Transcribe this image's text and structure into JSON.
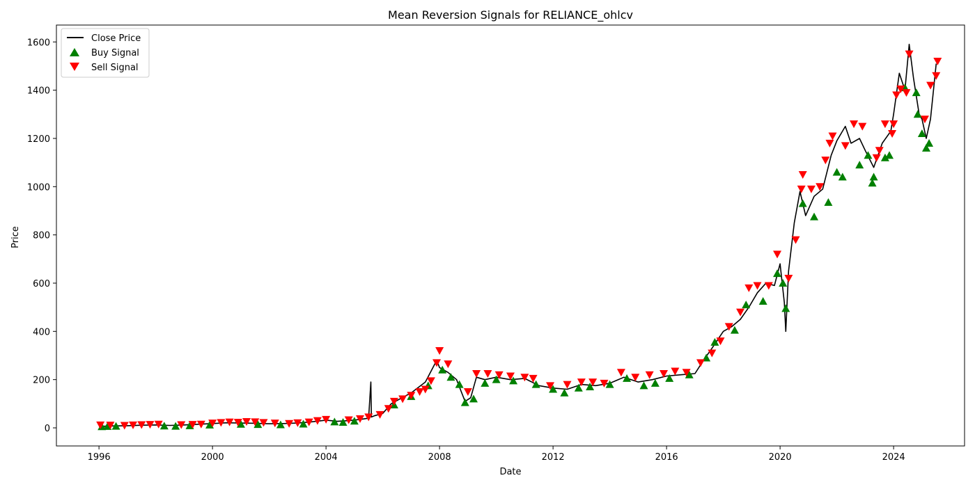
{
  "chart_data": {
    "type": "line",
    "title": "Mean Reversion Signals for RELIANCE_ohlcv",
    "xlabel": "Date",
    "ylabel": "Price",
    "xlim": [
      1994.5,
      2026.5
    ],
    "ylim": [
      -75,
      1670
    ],
    "x_ticks": [
      1996,
      2000,
      2004,
      2008,
      2012,
      2016,
      2020,
      2024
    ],
    "y_ticks": [
      0,
      200,
      400,
      600,
      800,
      1000,
      1200,
      1400,
      1600
    ],
    "grid": false,
    "legend_position": "upper-left",
    "colors": {
      "close": "#000000",
      "buy": "#008000",
      "sell": "#ff0000"
    },
    "series": [
      {
        "name": "Close Price",
        "kind": "line",
        "x": [
          1996.0,
          1996.5,
          1997.0,
          1997.5,
          1998.0,
          1998.5,
          1999.0,
          1999.5,
          2000.0,
          2000.5,
          2001.0,
          2001.5,
          2002.0,
          2002.5,
          2003.0,
          2003.5,
          2004.0,
          2004.4,
          2004.8,
          2005.2,
          2005.5,
          2005.58,
          2005.6,
          2005.7,
          2006.0,
          2006.3,
          2006.6,
          2007.0,
          2007.5,
          2007.9,
          2008.0,
          2008.3,
          2008.6,
          2008.8,
          2008.9,
          2009.1,
          2009.3,
          2009.6,
          2010.0,
          2010.5,
          2011.0,
          2011.5,
          2012.0,
          2012.5,
          2013.0,
          2013.5,
          2014.0,
          2014.5,
          2015.0,
          2015.5,
          2016.0,
          2016.5,
          2017.0,
          2017.3,
          2017.6,
          2018.0,
          2018.3,
          2018.6,
          2018.9,
          2019.2,
          2019.5,
          2019.8,
          2020.0,
          2020.15,
          2020.2,
          2020.3,
          2020.5,
          2020.7,
          2020.9,
          2021.2,
          2021.5,
          2021.8,
          2022.0,
          2022.3,
          2022.5,
          2022.8,
          2023.0,
          2023.3,
          2023.6,
          2023.9,
          2024.0,
          2024.2,
          2024.4,
          2024.55,
          2024.7,
          2024.9,
          2025.0,
          2025.15,
          2025.3,
          2025.5
        ],
        "values": [
          6,
          8,
          9,
          11,
          12,
          10,
          12,
          15,
          18,
          21,
          20,
          19,
          17,
          18,
          20,
          25,
          32,
          27,
          30,
          35,
          40,
          190,
          45,
          50,
          60,
          100,
          120,
          145,
          190,
          280,
          250,
          230,
          200,
          140,
          110,
          125,
          210,
          200,
          210,
          200,
          205,
          175,
          165,
          160,
          180,
          175,
          185,
          210,
          190,
          200,
          215,
          220,
          225,
          280,
          330,
          400,
          420,
          450,
          500,
          560,
          600,
          590,
          680,
          520,
          400,
          650,
          850,
          980,
          880,
          960,
          990,
          1130,
          1190,
          1250,
          1180,
          1200,
          1150,
          1080,
          1180,
          1230,
          1300,
          1470,
          1400,
          1590,
          1450,
          1300,
          1280,
          1200,
          1280,
          1510
        ]
      },
      {
        "name": "Buy Signal",
        "kind": "scatter",
        "marker": "triangle-up",
        "x": [
          1996.1,
          1996.3,
          1996.6,
          1998.3,
          1998.7,
          1999.2,
          1999.9,
          2001.0,
          2001.6,
          2002.4,
          2003.2,
          2004.3,
          2004.6,
          2005.0,
          2006.4,
          2007.0,
          2007.6,
          2008.1,
          2008.4,
          2008.7,
          2008.9,
          2009.2,
          2009.6,
          2010.0,
          2010.6,
          2011.4,
          2012.0,
          2012.4,
          2012.9,
          2013.3,
          2014.0,
          2014.6,
          2015.2,
          2015.6,
          2016.1,
          2016.8,
          2017.4,
          2017.7,
          2018.4,
          2018.8,
          2019.4,
          2019.9,
          2020.1,
          2020.2,
          2020.8,
          2021.2,
          2021.7,
          2022.0,
          2022.2,
          2022.8,
          2023.1,
          2023.25,
          2023.3,
          2023.7,
          2023.85,
          2024.4,
          2024.8,
          2024.85,
          2025.0,
          2025.15,
          2025.25
        ],
        "values": [
          5,
          6,
          7,
          8,
          7,
          9,
          12,
          15,
          14,
          13,
          16,
          25,
          23,
          28,
          95,
          130,
          175,
          240,
          210,
          180,
          105,
          120,
          185,
          200,
          195,
          180,
          160,
          145,
          165,
          170,
          180,
          205,
          175,
          185,
          205,
          220,
          290,
          355,
          405,
          510,
          525,
          640,
          600,
          495,
          930,
          875,
          935,
          1060,
          1040,
          1090,
          1130,
          1015,
          1040,
          1120,
          1130,
          1410,
          1390,
          1300,
          1220,
          1160,
          1180
        ]
      },
      {
        "name": "Sell Signal",
        "kind": "scatter",
        "marker": "triangle-down",
        "x": [
          1996.05,
          1996.4,
          1996.9,
          1997.2,
          1997.5,
          1997.8,
          1998.1,
          1998.9,
          1999.3,
          1999.6,
          2000.0,
          2000.3,
          2000.6,
          2000.9,
          2001.2,
          2001.5,
          2001.8,
          2002.2,
          2002.7,
          2003.0,
          2003.4,
          2003.7,
          2004.0,
          2004.8,
          2005.2,
          2005.5,
          2005.9,
          2006.2,
          2006.4,
          2006.7,
          2007.0,
          2007.3,
          2007.5,
          2007.7,
          2007.9,
          2008.0,
          2008.3,
          2009.0,
          2009.3,
          2009.7,
          2010.1,
          2010.5,
          2011.0,
          2011.3,
          2011.9,
          2012.5,
          2013.0,
          2013.4,
          2013.8,
          2014.4,
          2014.9,
          2015.4,
          2015.9,
          2016.3,
          2016.7,
          2017.2,
          2017.6,
          2017.9,
          2018.2,
          2018.6,
          2018.9,
          2019.2,
          2019.6,
          2019.9,
          2020.3,
          2020.55,
          2020.75,
          2020.8,
          2021.1,
          2021.4,
          2021.6,
          2021.75,
          2021.85,
          2022.3,
          2022.6,
          2022.9,
          2023.4,
          2023.5,
          2023.7,
          2023.95,
          2024.0,
          2024.1,
          2024.25,
          2024.45,
          2024.55,
          2025.1,
          2025.3,
          2025.5,
          2025.55
        ],
        "values": [
          12,
          11,
          10,
          12,
          13,
          14,
          15,
          13,
          14,
          15,
          20,
          22,
          24,
          23,
          26,
          25,
          22,
          20,
          18,
          21,
          24,
          30,
          35,
          33,
          38,
          45,
          55,
          80,
          110,
          120,
          135,
          150,
          160,
          195,
          270,
          320,
          265,
          150,
          225,
          225,
          220,
          215,
          210,
          205,
          175,
          180,
          190,
          190,
          185,
          230,
          210,
          220,
          225,
          235,
          230,
          270,
          310,
          360,
          420,
          480,
          580,
          590,
          590,
          720,
          620,
          780,
          990,
          1050,
          990,
          1000,
          1110,
          1180,
          1210,
          1170,
          1260,
          1250,
          1120,
          1150,
          1260,
          1220,
          1260,
          1380,
          1405,
          1390,
          1550,
          1280,
          1420,
          1460,
          1520
        ]
      }
    ]
  }
}
